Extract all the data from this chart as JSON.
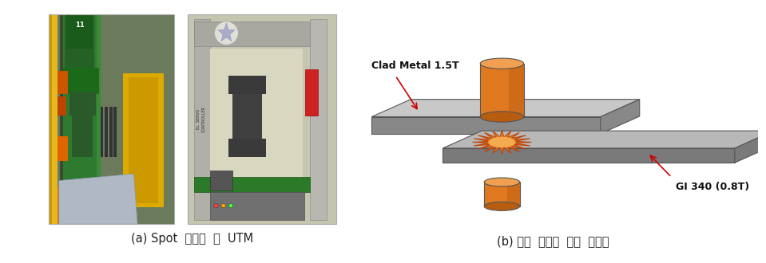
{
  "fig_width": 9.59,
  "fig_height": 3.3,
  "dpi": 100,
  "bg_color": "#f2f2f2",
  "caption_a": "(a) Spot  용접기  및  UTM",
  "caption_b": "(b) 용접  시험편  제작  개념도",
  "label_clad": "Clad Metal 1.5T",
  "label_gi": "GI 340 (0.8T)",
  "caption_fontsize": 10.5,
  "label_fontsize": 9.0,
  "arrow_color": "#cc0000",
  "text_color": "#222222",
  "photo1_bg": "#6a7a5a",
  "photo2_bg": "#cccbb8",
  "plate_face": "#c2c2c2",
  "plate_side": "#888888",
  "plate2_face": "#b5b5b5",
  "plate2_side": "#787878",
  "cyl_body": "#e07820",
  "cyl_dark": "#b85c10",
  "cyl_top": "#f0a050",
  "spark_color": "#e07820",
  "spark_edge": "#c04000"
}
